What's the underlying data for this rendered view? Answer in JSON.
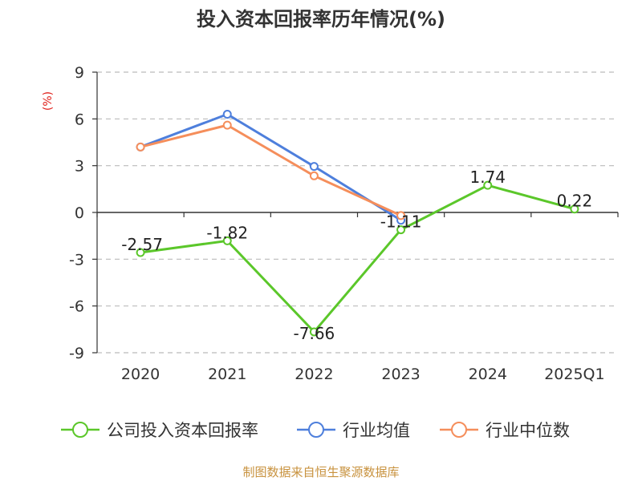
{
  "chart_data": {
    "type": "line",
    "title": "投入资本回报率历年情况(%)",
    "ylabel": "(%)",
    "xlabel": "",
    "categories": [
      "2020",
      "2021",
      "2022",
      "2023",
      "2024",
      "2025Q1"
    ],
    "ylim": [
      -9,
      9
    ],
    "yticks": [
      9,
      6,
      3,
      0,
      -3,
      -6,
      -9
    ],
    "grid": true,
    "legend_position": "bottom",
    "series": [
      {
        "name": "公司投入资本回报率",
        "color": "#5bc72a",
        "values": [
          -2.57,
          -1.82,
          -7.66,
          -1.11,
          1.74,
          0.22
        ],
        "labels": [
          "-2.57",
          "-1.82",
          "-7.66",
          "-1.11",
          "1.74",
          "0.22"
        ]
      },
      {
        "name": "行业均值",
        "color": "#4e7fdc",
        "values": [
          4.2,
          6.3,
          2.95,
          -0.5,
          null,
          null
        ]
      },
      {
        "name": "行业中位数",
        "color": "#f58e5b",
        "values": [
          4.2,
          5.6,
          2.35,
          -0.2,
          null,
          null
        ]
      }
    ],
    "source": "制图数据来自恒生聚源数据库",
    "colors": {
      "title": "#333333",
      "axis": "#333333",
      "grid": "#bbbbbb",
      "ylabel": "#e0201b",
      "source": "#c8923e",
      "tick_text": "#333333"
    }
  }
}
